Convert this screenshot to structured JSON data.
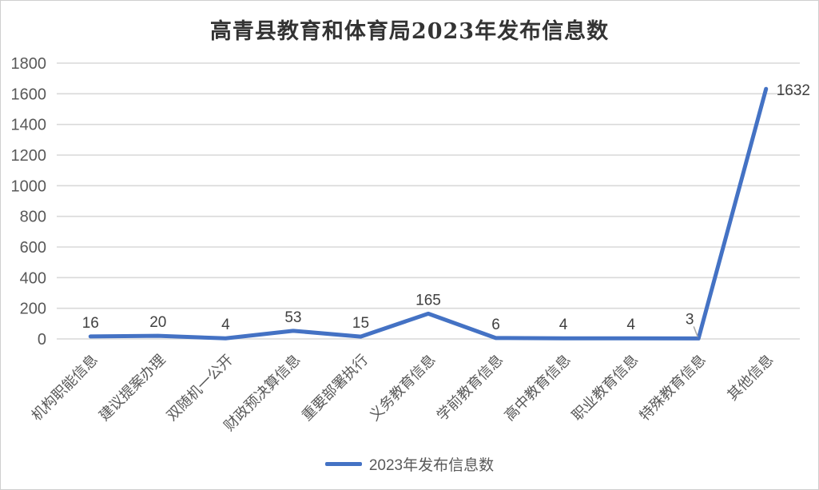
{
  "chart_data": {
    "type": "line",
    "title": "高青县教育和体育局2023年发布信息数",
    "categories": [
      "机构职能信息",
      "建议提案办理",
      "双随机一公开",
      "财政预决算信息",
      "重要部署执行",
      "义务教育信息",
      "学前教育信息",
      "高中教育信息",
      "职业教育信息",
      "特殊教育信息",
      "其他信息"
    ],
    "series": [
      {
        "name": "2023年发布信息数",
        "values": [
          16,
          20,
          4,
          53,
          15,
          165,
          6,
          4,
          4,
          3,
          1632
        ]
      }
    ],
    "xlabel": "",
    "ylabel": "",
    "ylim": [
      0,
      1800
    ],
    "ytick_interval": 200,
    "yticks": [
      0,
      200,
      400,
      600,
      800,
      1000,
      1200,
      1400,
      1600,
      1800
    ],
    "grid": true,
    "data_labels": true,
    "label_placement": [
      "above",
      "above",
      "above",
      "above",
      "above",
      "above",
      "above",
      "above",
      "above",
      "leader-left",
      "right"
    ],
    "legend_position": "bottom",
    "colors": {
      "line": "#4472C4",
      "gridline": "#D9D9D9",
      "axis_text": "#595959",
      "data_label": "#404040",
      "title_text": "#333333",
      "leader": "#A6A6A6"
    }
  }
}
